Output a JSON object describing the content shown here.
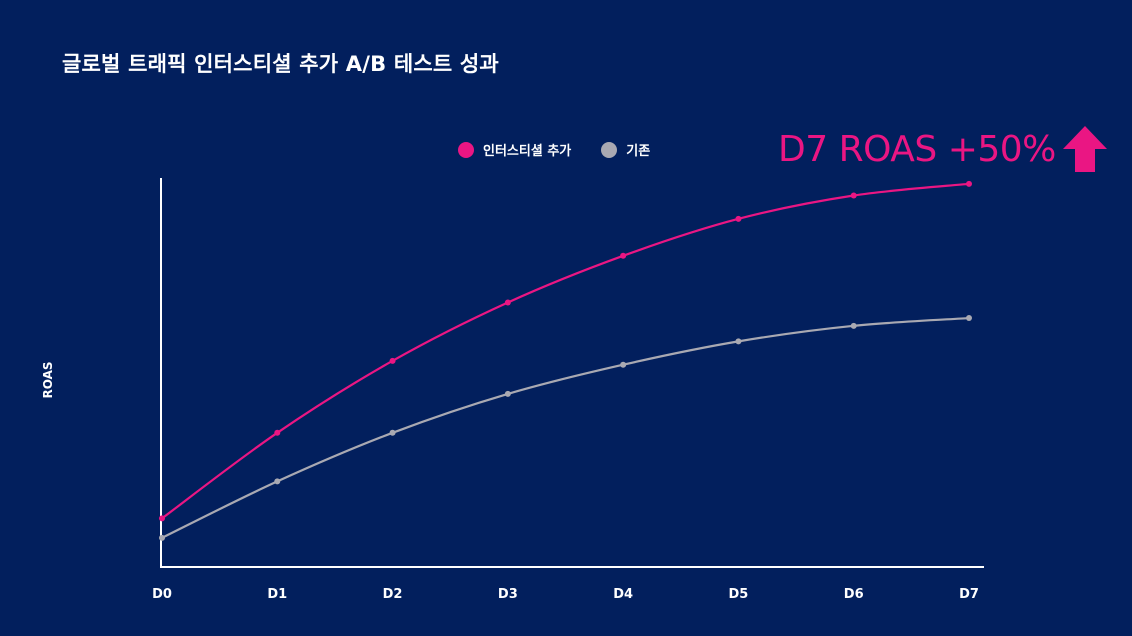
{
  "title": "글로벌 트래픽 인터스티셜 추가 A/B 테스트 성과",
  "callout": "D7 ROAS +50%",
  "colors": {
    "background": "#021f5d",
    "interstitial": "#ea1683",
    "baseline": "#a9a9b2",
    "axis": "#ffffff"
  },
  "chart_data": {
    "type": "line",
    "title": "글로벌 트래픽 인터스티셜 추가 A/B 테스트 성과",
    "xlabel": "",
    "ylabel": "ROAS",
    "categories": [
      "D0",
      "D1",
      "D2",
      "D3",
      "D4",
      "D5",
      "D6",
      "D7"
    ],
    "ylim": [
      0,
      100
    ],
    "grid": false,
    "legend_position": "top-center",
    "series": [
      {
        "name": "인터스티셜 추가",
        "color": "#ea1683",
        "values": [
          12.5,
          34.5,
          53.0,
          68.0,
          80.0,
          89.5,
          95.5,
          98.5
        ]
      },
      {
        "name": "기존",
        "color": "#a9a9b2",
        "values": [
          7.5,
          22.0,
          34.5,
          44.5,
          52.0,
          58.0,
          62.0,
          64.0
        ]
      }
    ]
  }
}
